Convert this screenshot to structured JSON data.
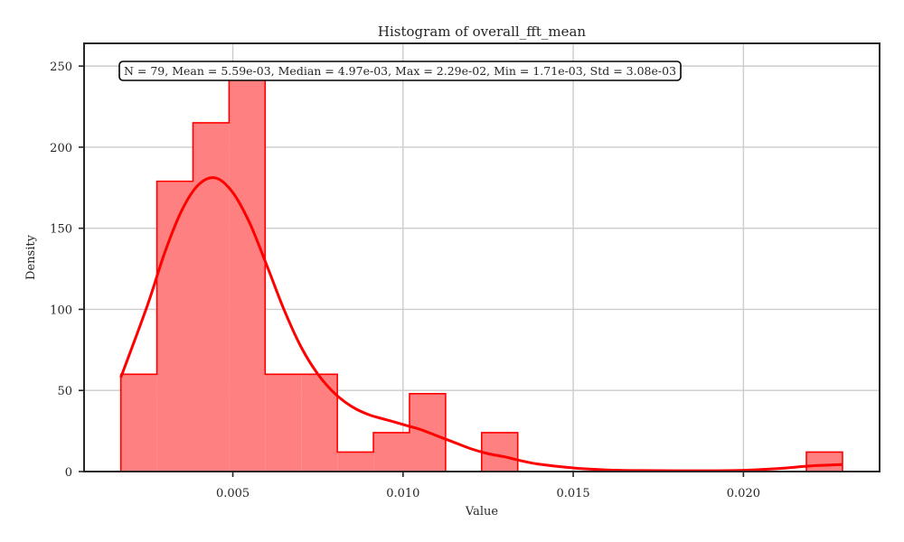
{
  "chart_data": {
    "type": "histogram",
    "title": "Histogram of overall_fft_mean",
    "xlabel": "Value",
    "ylabel": "Density",
    "xlim": [
      0.00063,
      0.024
    ],
    "ylim": [
      0,
      264
    ],
    "xticks": [
      0.005,
      0.01,
      0.015,
      0.02
    ],
    "xtick_labels": [
      "0.005",
      "0.010",
      "0.015",
      "0.020"
    ],
    "yticks": [
      0,
      50,
      100,
      150,
      200,
      250
    ],
    "ytick_labels": [
      "0",
      "50",
      "100",
      "150",
      "200",
      "250"
    ],
    "grid": true,
    "bin_edges": [
      0.00171,
      0.00277,
      0.00383,
      0.00489,
      0.00595,
      0.00701,
      0.00807,
      0.00913,
      0.01019,
      0.01125,
      0.01231,
      0.01337,
      0.01443,
      0.01549,
      0.01655,
      0.01761,
      0.01867,
      0.01973,
      0.02079,
      0.02185,
      0.02291
    ],
    "bin_densities": [
      60,
      179,
      215,
      250,
      60,
      60,
      12,
      24,
      48,
      0,
      24,
      0,
      0,
      0,
      0,
      0,
      0,
      0,
      0,
      12
    ],
    "kde": {
      "x": [
        0.00171,
        0.0025,
        0.003,
        0.0035,
        0.004,
        0.0045,
        0.005,
        0.0055,
        0.006,
        0.0065,
        0.007,
        0.0075,
        0.008,
        0.0085,
        0.009,
        0.0095,
        0.01,
        0.0105,
        0.011,
        0.0115,
        0.012,
        0.0125,
        0.013,
        0.0135,
        0.014,
        0.015,
        0.016,
        0.017,
        0.018,
        0.019,
        0.02,
        0.021,
        0.022,
        0.02291
      ],
      "y": [
        58,
        103,
        135,
        161,
        177,
        181,
        172,
        153,
        127,
        100,
        77,
        60,
        48,
        40,
        35,
        32,
        29,
        26,
        22,
        18,
        14,
        11,
        9,
        6.5,
        4.5,
        2.2,
        1.0,
        0.6,
        0.5,
        0.5,
        0.8,
        1.8,
        3.5,
        4.3
      ]
    },
    "stats_box": "N = 79, Mean = 5.59e-03, Median = 4.97e-03, Max = 2.29e-02, Min = 1.71e-03, Std = 3.08e-03",
    "colors": {
      "bar_fill": "#ff8080",
      "bar_edge": "#ff0000",
      "kde_line": "#ff0000",
      "grid": "#cccccc",
      "axes": "#262626"
    }
  }
}
